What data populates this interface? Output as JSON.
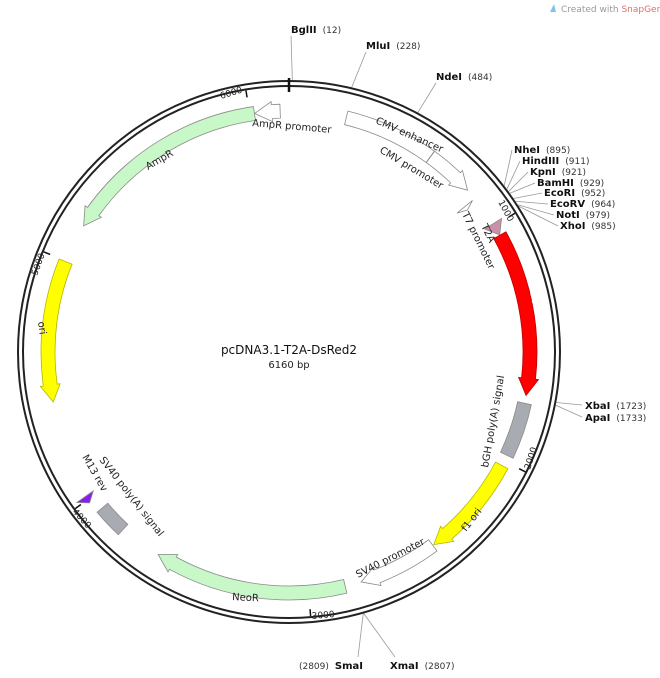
{
  "credit": {
    "prefix": "Created with ",
    "brand": "SnapGene",
    "mark": "®",
    "brand_color": "#e66b6b",
    "icon": "snapgene-logo-icon"
  },
  "plasmid": {
    "name": "pcDNA3.1-T2A-DsRed2",
    "length_label": "6160 bp",
    "length": 6160
  },
  "ticks": [
    {
      "bp": 1000,
      "label": "1000"
    },
    {
      "bp": 2000,
      "label": "2000"
    },
    {
      "bp": 3000,
      "label": "3000"
    },
    {
      "bp": 4000,
      "label": "4000"
    },
    {
      "bp": 5000,
      "label": "5000"
    },
    {
      "bp": 6000,
      "label": "6000"
    }
  ],
  "features": [
    {
      "name": "CMV enhancer",
      "start": 235,
      "end": 614,
      "dir": 0,
      "color": "#ffffff"
    },
    {
      "name": "CMV promoter",
      "start": 615,
      "end": 818,
      "dir": 1,
      "color": "#ffffff"
    },
    {
      "name": "T7 promoter",
      "start": 863,
      "end": 881,
      "dir": 1,
      "color": "#ffffff"
    },
    {
      "name": "T2A",
      "start": 990,
      "end": 1043,
      "dir": 1,
      "color": "#c990a8"
    },
    {
      "name": "DsRed2",
      "start": 1044,
      "end": 1718,
      "dir": 1,
      "color": "#ff0000"
    },
    {
      "name": "bGH poly(A) signal",
      "start": 1750,
      "end": 1974,
      "dir": 0,
      "color": "#a8acb2"
    },
    {
      "name": "f1 ori",
      "start": 2020,
      "end": 2448,
      "dir": 1,
      "color": "#ffff00"
    },
    {
      "name": "SV40 promoter",
      "start": 2453,
      "end": 2782,
      "dir": 1,
      "color": "#ffffff"
    },
    {
      "name": "NeoR",
      "start": 2849,
      "end": 3643,
      "dir": 1,
      "color": "#c8f7c8"
    },
    {
      "name": "SV40 poly(A) signal",
      "start": 3817,
      "end": 3938,
      "dir": 0,
      "color": "#a8acb2"
    },
    {
      "name": "M13 rev",
      "start": 3985,
      "end": 4015,
      "dir": -1,
      "color": "#8a1cf0"
    },
    {
      "name": "ori",
      "start": 4415,
      "end": 4997,
      "dir": -1,
      "color": "#ffff00"
    },
    {
      "name": "AmpR",
      "start": 5160,
      "end": 6019,
      "dir": -1,
      "color": "#c8f7c8"
    },
    {
      "name": "AmpR promoter",
      "start": 6020,
      "end": 6124,
      "dir": -1,
      "color": "#ffffff"
    }
  ],
  "sites": [
    {
      "enzyme": "BglII",
      "pos": 12,
      "pos_label": "(12)"
    },
    {
      "enzyme": "MluI",
      "pos": 228,
      "pos_label": "(228)"
    },
    {
      "enzyme": "NdeI",
      "pos": 484,
      "pos_label": "(484)"
    },
    {
      "enzyme": "NheI",
      "pos": 895,
      "pos_label": "(895)"
    },
    {
      "enzyme": "HindIII",
      "pos": 911,
      "pos_label": "(911)"
    },
    {
      "enzyme": "KpnI",
      "pos": 921,
      "pos_label": "(921)"
    },
    {
      "enzyme": "BamHI",
      "pos": 929,
      "pos_label": "(929)"
    },
    {
      "enzyme": "EcoRI",
      "pos": 952,
      "pos_label": "(952)"
    },
    {
      "enzyme": "EcoRV",
      "pos": 964,
      "pos_label": "(964)"
    },
    {
      "enzyme": "NotI",
      "pos": 979,
      "pos_label": "(979)"
    },
    {
      "enzyme": "XhoI",
      "pos": 985,
      "pos_label": "(985)"
    },
    {
      "enzyme": "XbaI",
      "pos": 1723,
      "pos_label": "(1723)"
    },
    {
      "enzyme": "ApaI",
      "pos": 1733,
      "pos_label": "(1733)"
    },
    {
      "enzyme": "SmaI",
      "pos": 2809,
      "pos_label": "(2809)"
    },
    {
      "enzyme": "XmaI",
      "pos": 2807,
      "pos_label": "(2807)"
    }
  ]
}
